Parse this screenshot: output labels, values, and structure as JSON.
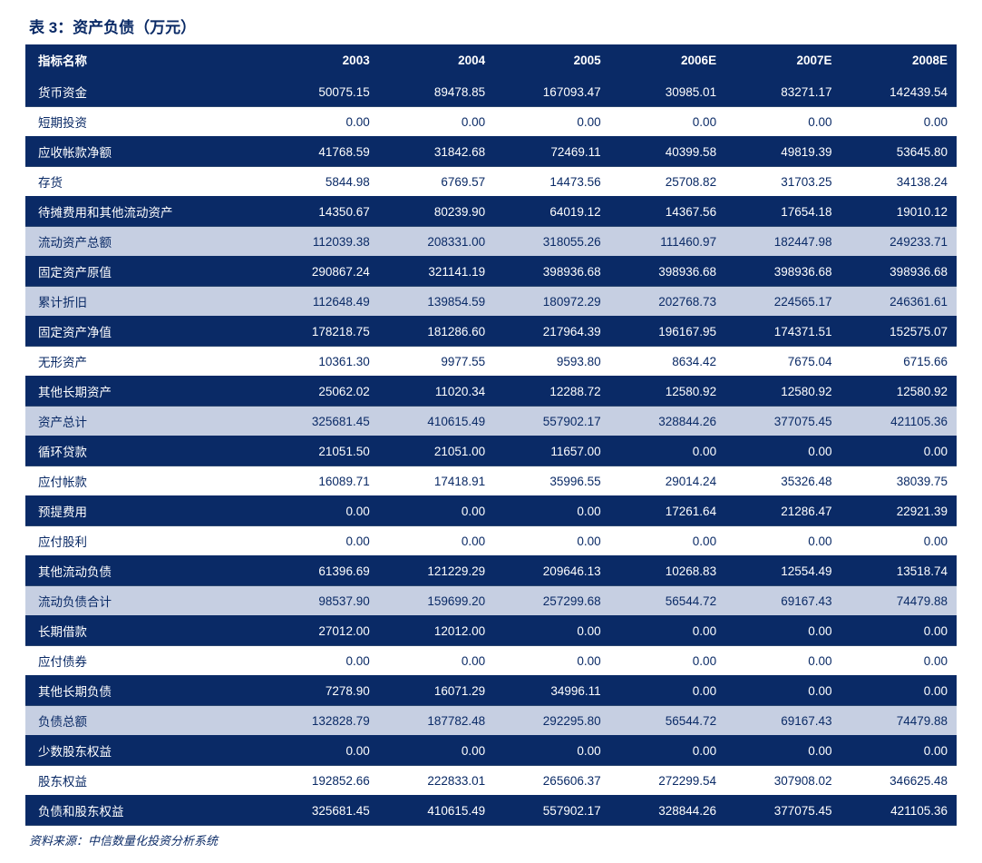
{
  "title": "表 3：资产负债（万元）",
  "source": "资料来源：中信数量化投资分析系统",
  "columns": [
    "指标名称",
    "2003",
    "2004",
    "2005",
    "2006E",
    "2007E",
    "2008E"
  ],
  "rowStyles": [
    "dark",
    "plain",
    "dark",
    "plain",
    "dark",
    "shade",
    "dark",
    "shade",
    "dark",
    "plain",
    "dark",
    "shade",
    "dark",
    "plain",
    "dark",
    "plain",
    "dark",
    "shade",
    "dark",
    "plain",
    "dark",
    "shade",
    "dark",
    "plain",
    "dark"
  ],
  "rows": [
    [
      "货币资金",
      "50075.15",
      "89478.85",
      "167093.47",
      "30985.01",
      "83271.17",
      "142439.54"
    ],
    [
      "短期投资",
      "0.00",
      "0.00",
      "0.00",
      "0.00",
      "0.00",
      "0.00"
    ],
    [
      "应收帐款净额",
      "41768.59",
      "31842.68",
      "72469.11",
      "40399.58",
      "49819.39",
      "53645.80"
    ],
    [
      "存货",
      "5844.98",
      "6769.57",
      "14473.56",
      "25708.82",
      "31703.25",
      "34138.24"
    ],
    [
      "待摊费用和其他流动资产",
      "14350.67",
      "80239.90",
      "64019.12",
      "14367.56",
      "17654.18",
      "19010.12"
    ],
    [
      "流动资产总额",
      "112039.38",
      "208331.00",
      "318055.26",
      "111460.97",
      "182447.98",
      "249233.71"
    ],
    [
      "固定资产原值",
      "290867.24",
      "321141.19",
      "398936.68",
      "398936.68",
      "398936.68",
      "398936.68"
    ],
    [
      "累计折旧",
      "112648.49",
      "139854.59",
      "180972.29",
      "202768.73",
      "224565.17",
      "246361.61"
    ],
    [
      "固定资产净值",
      "178218.75",
      "181286.60",
      "217964.39",
      "196167.95",
      "174371.51",
      "152575.07"
    ],
    [
      "无形资产",
      "10361.30",
      "9977.55",
      "9593.80",
      "8634.42",
      "7675.04",
      "6715.66"
    ],
    [
      "其他长期资产",
      "25062.02",
      "11020.34",
      "12288.72",
      "12580.92",
      "12580.92",
      "12580.92"
    ],
    [
      "资产总计",
      "325681.45",
      "410615.49",
      "557902.17",
      "328844.26",
      "377075.45",
      "421105.36"
    ],
    [
      "循环贷款",
      "21051.50",
      "21051.00",
      "11657.00",
      "0.00",
      "0.00",
      "0.00"
    ],
    [
      "应付帐款",
      "16089.71",
      "17418.91",
      "35996.55",
      "29014.24",
      "35326.48",
      "38039.75"
    ],
    [
      "预提费用",
      "0.00",
      "0.00",
      "0.00",
      "17261.64",
      "21286.47",
      "22921.39"
    ],
    [
      "应付股利",
      "0.00",
      "0.00",
      "0.00",
      "0.00",
      "0.00",
      "0.00"
    ],
    [
      "其他流动负债",
      "61396.69",
      "121229.29",
      "209646.13",
      "10268.83",
      "12554.49",
      "13518.74"
    ],
    [
      "流动负债合计",
      "98537.90",
      "159699.20",
      "257299.68",
      "56544.72",
      "69167.43",
      "74479.88"
    ],
    [
      "长期借款",
      "27012.00",
      "12012.00",
      "0.00",
      "0.00",
      "0.00",
      "0.00"
    ],
    [
      "应付债券",
      "0.00",
      "0.00",
      "0.00",
      "0.00",
      "0.00",
      "0.00"
    ],
    [
      "其他长期负债",
      "7278.90",
      "16071.29",
      "34996.11",
      "0.00",
      "0.00",
      "0.00"
    ],
    [
      "负债总额",
      "132828.79",
      "187782.48",
      "292295.80",
      "56544.72",
      "69167.43",
      "74479.88"
    ],
    [
      "少数股东权益",
      "0.00",
      "0.00",
      "0.00",
      "0.00",
      "0.00",
      "0.00"
    ],
    [
      "股东权益",
      "192852.66",
      "222833.01",
      "265606.37",
      "272299.54",
      "307908.02",
      "346625.48"
    ],
    [
      "负债和股东权益",
      "325681.45",
      "410615.49",
      "557902.17",
      "328844.26",
      "377075.45",
      "421105.36"
    ]
  ],
  "style": {
    "title_color": "#0a2a66",
    "header_bg": "#0a2a66",
    "header_fg": "#ffffff",
    "dark_bg": "#0a2a66",
    "dark_fg": "#ffffff",
    "shade_bg": "#c6cfe2",
    "plain_bg": "#ffffff",
    "cell_fg": "#0a2a66",
    "border_color": "#0a2a66",
    "font_size_body": 13.5,
    "font_size_title": 17
  }
}
